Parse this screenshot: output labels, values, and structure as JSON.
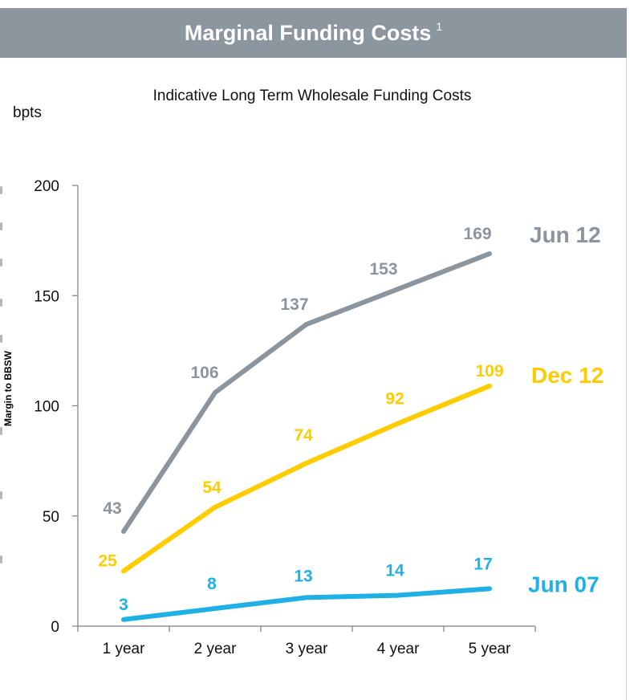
{
  "header": {
    "title": "Marginal Funding Costs",
    "footnote": "1"
  },
  "colors": {
    "header_bg": "#8c969f",
    "axis": "#7f7f7f"
  },
  "chart_data": {
    "type": "line",
    "title": "Indicative Long Term Wholesale Funding Costs",
    "ylabel": "Margin to BBSW",
    "yunit": "bpts",
    "categories": [
      "1 year",
      "2 year",
      "3 year",
      "4 year",
      "5 year"
    ],
    "ylim": [
      0,
      200
    ],
    "yticks": [
      0,
      50,
      100,
      150,
      200
    ],
    "grid": false,
    "legend": "series labels at right end of lines",
    "series": [
      {
        "name": "Jun 12",
        "color": "#8b959e",
        "values": [
          43,
          106,
          137,
          153,
          169
        ]
      },
      {
        "name": "Dec 12",
        "color": "#ffcc00",
        "values": [
          25,
          54,
          74,
          92,
          109
        ]
      },
      {
        "name": "Jun 07",
        "color": "#1fb0e6",
        "values": [
          3,
          8,
          13,
          14,
          17
        ]
      }
    ]
  }
}
